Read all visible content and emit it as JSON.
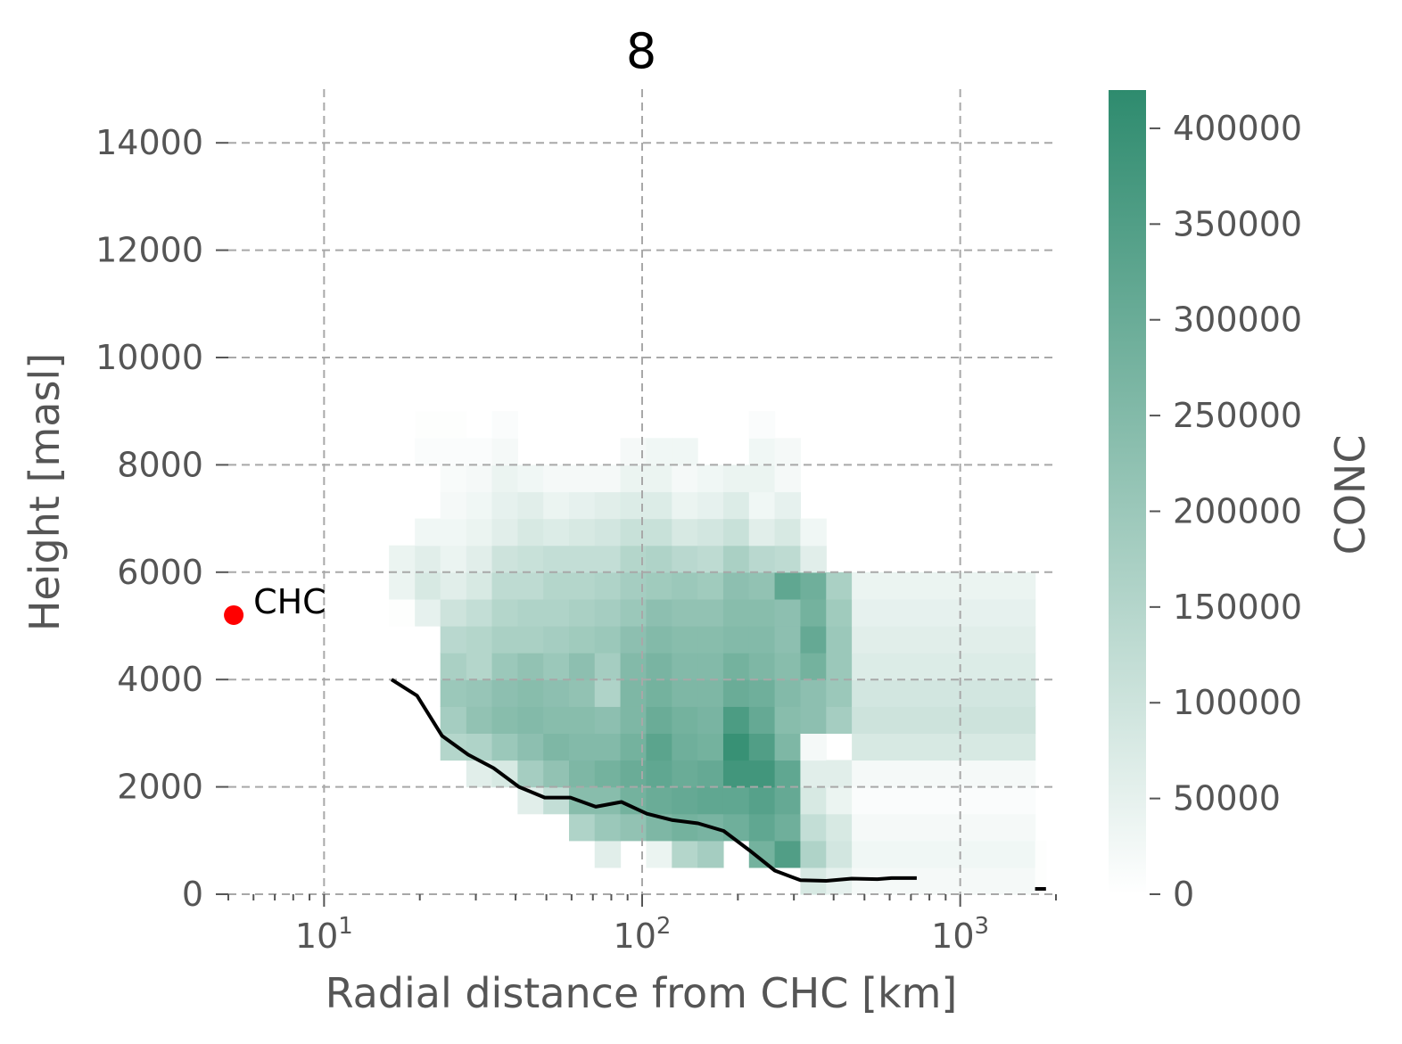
{
  "chart_data": {
    "type": "heatmap",
    "title": "8",
    "xlabel": "Radial distance from CHC [km]",
    "ylabel": "Height [masl]",
    "xscale": "log",
    "xlim": [
      5,
      2000
    ],
    "ylim": [
      0,
      15000
    ],
    "x_ticks": [
      {
        "value": 10,
        "base": "10",
        "exp": "1"
      },
      {
        "value": 100,
        "base": "10",
        "exp": "2"
      },
      {
        "value": 1000,
        "base": "10",
        "exp": "3"
      }
    ],
    "y_ticks": [
      0,
      2000,
      4000,
      6000,
      8000,
      10000,
      12000,
      14000
    ],
    "grid": true,
    "colorbar": {
      "label": "CONC",
      "min": 0,
      "max": 420000,
      "ticks": [
        0,
        50000,
        100000,
        150000,
        200000,
        250000,
        300000,
        350000,
        400000
      ],
      "color_low": "#ffffff",
      "color_high": "#2e8b6e"
    },
    "heatmap": {
      "x_edges": [
        16.0,
        19.3,
        23.2,
        28.0,
        33.7,
        40.6,
        48.9,
        58.9,
        70.9,
        85.4,
        102.9,
        124.0,
        149.3,
        179.9,
        216.7,
        261.0,
        314.4,
        378.8,
        456.3,
        1720,
        1860
      ],
      "y_step": 500,
      "cells": [
        [
          0,
          10,
          5000
        ],
        [
          0,
          11,
          40000
        ],
        [
          0,
          12,
          40000
        ],
        [
          1,
          10,
          50000
        ],
        [
          1,
          11,
          80000
        ],
        [
          1,
          12,
          60000
        ],
        [
          1,
          13,
          30000
        ],
        [
          1,
          16,
          10000
        ],
        [
          1,
          17,
          5000
        ],
        [
          2,
          5,
          150000
        ],
        [
          2,
          6,
          180000
        ],
        [
          2,
          7,
          200000
        ],
        [
          2,
          8,
          170000
        ],
        [
          2,
          9,
          140000
        ],
        [
          2,
          10,
          100000
        ],
        [
          2,
          11,
          60000
        ],
        [
          2,
          12,
          40000
        ],
        [
          2,
          13,
          30000
        ],
        [
          2,
          14,
          20000
        ],
        [
          2,
          15,
          15000
        ],
        [
          2,
          16,
          10000
        ],
        [
          2,
          17,
          5000
        ],
        [
          3,
          4,
          60000
        ],
        [
          3,
          5,
          160000
        ],
        [
          3,
          6,
          220000
        ],
        [
          3,
          7,
          210000
        ],
        [
          3,
          8,
          150000
        ],
        [
          3,
          9,
          150000
        ],
        [
          3,
          10,
          120000
        ],
        [
          3,
          11,
          80000
        ],
        [
          3,
          12,
          60000
        ],
        [
          3,
          13,
          40000
        ],
        [
          3,
          14,
          30000
        ],
        [
          3,
          15,
          20000
        ],
        [
          3,
          16,
          10000
        ],
        [
          4,
          4,
          80000
        ],
        [
          4,
          5,
          200000
        ],
        [
          4,
          6,
          240000
        ],
        [
          4,
          7,
          230000
        ],
        [
          4,
          8,
          200000
        ],
        [
          4,
          9,
          170000
        ],
        [
          4,
          10,
          150000
        ],
        [
          4,
          11,
          130000
        ],
        [
          4,
          12,
          100000
        ],
        [
          4,
          13,
          60000
        ],
        [
          4,
          14,
          50000
        ],
        [
          4,
          15,
          40000
        ],
        [
          4,
          16,
          20000
        ],
        [
          4,
          17,
          10000
        ],
        [
          5,
          3,
          60000
        ],
        [
          5,
          4,
          180000
        ],
        [
          5,
          5,
          230000
        ],
        [
          5,
          6,
          250000
        ],
        [
          5,
          7,
          240000
        ],
        [
          5,
          8,
          220000
        ],
        [
          5,
          9,
          170000
        ],
        [
          5,
          10,
          160000
        ],
        [
          5,
          11,
          130000
        ],
        [
          5,
          12,
          110000
        ],
        [
          5,
          13,
          80000
        ],
        [
          5,
          14,
          60000
        ],
        [
          5,
          15,
          30000
        ],
        [
          6,
          3,
          120000
        ],
        [
          6,
          4,
          220000
        ],
        [
          6,
          5,
          260000
        ],
        [
          6,
          6,
          240000
        ],
        [
          6,
          7,
          230000
        ],
        [
          6,
          8,
          200000
        ],
        [
          6,
          9,
          180000
        ],
        [
          6,
          10,
          160000
        ],
        [
          6,
          11,
          150000
        ],
        [
          6,
          12,
          120000
        ],
        [
          6,
          13,
          70000
        ],
        [
          6,
          14,
          40000
        ],
        [
          6,
          15,
          20000
        ],
        [
          7,
          2,
          160000
        ],
        [
          7,
          3,
          240000
        ],
        [
          7,
          4,
          260000
        ],
        [
          7,
          5,
          250000
        ],
        [
          7,
          6,
          240000
        ],
        [
          7,
          7,
          220000
        ],
        [
          7,
          8,
          230000
        ],
        [
          7,
          9,
          190000
        ],
        [
          7,
          10,
          170000
        ],
        [
          7,
          11,
          150000
        ],
        [
          7,
          12,
          120000
        ],
        [
          7,
          13,
          80000
        ],
        [
          7,
          14,
          50000
        ],
        [
          7,
          15,
          20000
        ],
        [
          8,
          1,
          60000
        ],
        [
          8,
          2,
          200000
        ],
        [
          8,
          3,
          240000
        ],
        [
          8,
          4,
          280000
        ],
        [
          8,
          5,
          250000
        ],
        [
          8,
          6,
          230000
        ],
        [
          8,
          7,
          160000
        ],
        [
          8,
          8,
          180000
        ],
        [
          8,
          9,
          200000
        ],
        [
          8,
          10,
          180000
        ],
        [
          8,
          11,
          160000
        ],
        [
          8,
          12,
          120000
        ],
        [
          8,
          13,
          90000
        ],
        [
          8,
          14,
          60000
        ],
        [
          8,
          15,
          20000
        ],
        [
          9,
          2,
          220000
        ],
        [
          9,
          3,
          280000
        ],
        [
          9,
          4,
          300000
        ],
        [
          9,
          5,
          280000
        ],
        [
          9,
          6,
          260000
        ],
        [
          9,
          7,
          260000
        ],
        [
          9,
          8,
          250000
        ],
        [
          9,
          9,
          230000
        ],
        [
          9,
          10,
          200000
        ],
        [
          9,
          11,
          180000
        ],
        [
          9,
          12,
          150000
        ],
        [
          9,
          13,
          110000
        ],
        [
          9,
          14,
          70000
        ],
        [
          9,
          15,
          40000
        ],
        [
          9,
          16,
          20000
        ],
        [
          10,
          1,
          40000
        ],
        [
          10,
          2,
          260000
        ],
        [
          10,
          3,
          300000
        ],
        [
          10,
          4,
          320000
        ],
        [
          10,
          5,
          330000
        ],
        [
          10,
          6,
          300000
        ],
        [
          10,
          7,
          280000
        ],
        [
          10,
          8,
          270000
        ],
        [
          10,
          9,
          250000
        ],
        [
          10,
          10,
          230000
        ],
        [
          10,
          11,
          190000
        ],
        [
          10,
          12,
          160000
        ],
        [
          10,
          13,
          110000
        ],
        [
          10,
          14,
          70000
        ],
        [
          10,
          15,
          40000
        ],
        [
          10,
          16,
          30000
        ],
        [
          11,
          1,
          150000
        ],
        [
          11,
          2,
          280000
        ],
        [
          11,
          3,
          310000
        ],
        [
          11,
          4,
          300000
        ],
        [
          11,
          5,
          290000
        ],
        [
          11,
          6,
          280000
        ],
        [
          11,
          7,
          260000
        ],
        [
          11,
          8,
          250000
        ],
        [
          11,
          9,
          240000
        ],
        [
          11,
          10,
          220000
        ],
        [
          11,
          11,
          200000
        ],
        [
          11,
          12,
          140000
        ],
        [
          11,
          13,
          80000
        ],
        [
          11,
          14,
          40000
        ],
        [
          11,
          15,
          20000
        ],
        [
          11,
          16,
          30000
        ],
        [
          12,
          1,
          180000
        ],
        [
          12,
          2,
          270000
        ],
        [
          12,
          3,
          320000
        ],
        [
          12,
          4,
          310000
        ],
        [
          12,
          5,
          280000
        ],
        [
          12,
          6,
          270000
        ],
        [
          12,
          7,
          260000
        ],
        [
          12,
          8,
          250000
        ],
        [
          12,
          9,
          240000
        ],
        [
          12,
          10,
          220000
        ],
        [
          12,
          11,
          190000
        ],
        [
          12,
          12,
          130000
        ],
        [
          12,
          13,
          90000
        ],
        [
          12,
          14,
          50000
        ],
        [
          12,
          15,
          30000
        ],
        [
          13,
          2,
          290000
        ],
        [
          13,
          3,
          320000
        ],
        [
          13,
          4,
          380000
        ],
        [
          13,
          5,
          400000
        ],
        [
          13,
          6,
          360000
        ],
        [
          13,
          7,
          300000
        ],
        [
          13,
          8,
          280000
        ],
        [
          13,
          9,
          250000
        ],
        [
          13,
          10,
          240000
        ],
        [
          13,
          11,
          230000
        ],
        [
          13,
          12,
          170000
        ],
        [
          13,
          13,
          110000
        ],
        [
          13,
          14,
          70000
        ],
        [
          13,
          15,
          40000
        ],
        [
          14,
          1,
          280000
        ],
        [
          14,
          2,
          320000
        ],
        [
          14,
          3,
          340000
        ],
        [
          14,
          4,
          380000
        ],
        [
          14,
          5,
          350000
        ],
        [
          14,
          6,
          310000
        ],
        [
          14,
          7,
          290000
        ],
        [
          14,
          8,
          260000
        ],
        [
          14,
          9,
          250000
        ],
        [
          14,
          10,
          240000
        ],
        [
          14,
          11,
          220000
        ],
        [
          14,
          12,
          140000
        ],
        [
          14,
          13,
          60000
        ],
        [
          14,
          14,
          30000
        ],
        [
          14,
          15,
          40000
        ],
        [
          14,
          16,
          30000
        ],
        [
          14,
          17,
          10000
        ],
        [
          15,
          1,
          350000
        ],
        [
          15,
          2,
          290000
        ],
        [
          15,
          3,
          310000
        ],
        [
          15,
          4,
          320000
        ],
        [
          15,
          5,
          260000
        ],
        [
          15,
          6,
          240000
        ],
        [
          15,
          7,
          250000
        ],
        [
          15,
          8,
          240000
        ],
        [
          15,
          9,
          230000
        ],
        [
          15,
          10,
          230000
        ],
        [
          15,
          11,
          320000
        ],
        [
          15,
          12,
          130000
        ],
        [
          15,
          13,
          80000
        ],
        [
          15,
          14,
          50000
        ],
        [
          15,
          15,
          20000
        ],
        [
          15,
          16,
          20000
        ],
        [
          16,
          0,
          80000
        ],
        [
          16,
          1,
          160000
        ],
        [
          16,
          2,
          120000
        ],
        [
          16,
          3,
          80000
        ],
        [
          16,
          4,
          60000
        ],
        [
          16,
          5,
          20000
        ],
        [
          16,
          6,
          230000
        ],
        [
          16,
          7,
          230000
        ],
        [
          16,
          8,
          280000
        ],
        [
          16,
          9,
          310000
        ],
        [
          16,
          10,
          280000
        ],
        [
          16,
          11,
          290000
        ],
        [
          16,
          12,
          60000
        ],
        [
          16,
          13,
          30000
        ],
        [
          17,
          0,
          50000
        ],
        [
          17,
          1,
          90000
        ],
        [
          17,
          2,
          80000
        ],
        [
          17,
          3,
          40000
        ],
        [
          17,
          4,
          60000
        ],
        [
          17,
          6,
          180000
        ],
        [
          17,
          7,
          200000
        ],
        [
          17,
          8,
          200000
        ],
        [
          17,
          9,
          200000
        ],
        [
          17,
          10,
          190000
        ],
        [
          17,
          11,
          170000
        ],
        [
          18,
          0,
          20000
        ],
        [
          18,
          1,
          30000
        ],
        [
          18,
          2,
          20000
        ],
        [
          18,
          3,
          10000
        ],
        [
          18,
          4,
          20000
        ],
        [
          18,
          5,
          80000
        ],
        [
          18,
          6,
          100000
        ],
        [
          18,
          7,
          90000
        ],
        [
          18,
          8,
          70000
        ],
        [
          18,
          9,
          60000
        ],
        [
          18,
          10,
          50000
        ],
        [
          18,
          11,
          40000
        ],
        [
          19,
          0,
          5000
        ],
        [
          19,
          1,
          5000
        ]
      ]
    },
    "series": [
      {
        "type": "line",
        "color": "#000000",
        "x": [
          16.3,
          19.6,
          23.5,
          28.4,
          34.1,
          41.0,
          49.4,
          59.5,
          71.5,
          86.1,
          103.5,
          124.6,
          149.9,
          180.4,
          217.2,
          261.4,
          314.6,
          379.0,
          456.1,
          549.1,
          608.5,
          730.0
        ],
        "y": [
          4000,
          3700,
          2950,
          2600,
          2350,
          2000,
          1800,
          1800,
          1630,
          1720,
          1500,
          1380,
          1320,
          1180,
          820,
          440,
          260,
          250,
          290,
          280,
          300,
          300
        ]
      },
      {
        "type": "line",
        "color": "#000000",
        "x": [
          1720,
          1860
        ],
        "y": [
          100,
          100
        ]
      }
    ],
    "annotations": [
      {
        "text": "CHC",
        "marker_color": "#ff0000",
        "x": 5.2,
        "y": 5200
      }
    ]
  }
}
